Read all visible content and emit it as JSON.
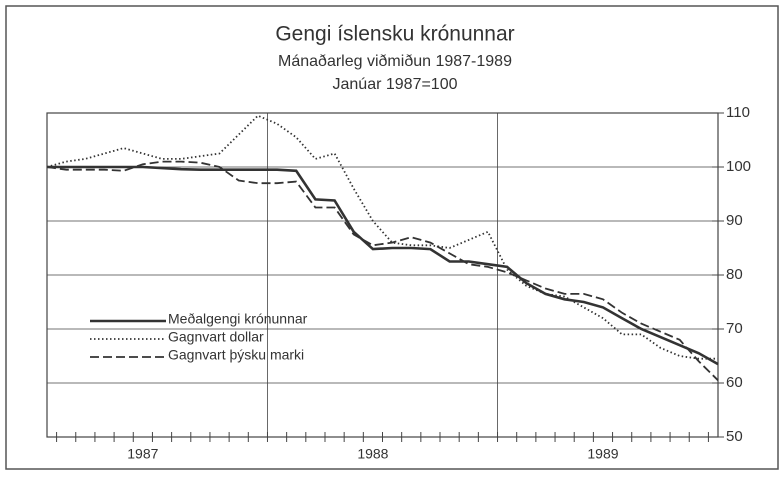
{
  "chart_data": {
    "type": "line",
    "title": "Gengi íslensku krónunnar",
    "subtitle": "Mánaðarleg viðmiðun 1987-1989",
    "note": "Janúar 1987=100",
    "categories": [
      null,
      null,
      null,
      null,
      null,
      "1987",
      null,
      null,
      null,
      null,
      null,
      null,
      null,
      null,
      null,
      null,
      null,
      "1988",
      null,
      null,
      null,
      null,
      null,
      null,
      null,
      null,
      null,
      null,
      null,
      "1989",
      null,
      null,
      null,
      null,
      null,
      null
    ],
    "series": [
      {
        "name": "Meðalgengi krónunnar",
        "color": "#333333",
        "dash": "solid",
        "values": [
          100,
          100,
          100,
          100,
          100,
          100,
          99.8,
          99.6,
          99.5,
          99.5,
          99.5,
          99.5,
          99.5,
          99.3,
          94,
          93.8,
          88,
          84.8,
          85,
          85,
          84.8,
          82.5,
          82.5,
          82,
          81.5,
          78.5,
          76.5,
          75.5,
          75,
          74,
          72,
          70,
          68.5,
          67,
          65.5,
          63.5
        ]
      },
      {
        "name": "Gagnvart dollar",
        "color": "#333333",
        "dash": "dotted",
        "values": [
          100,
          101,
          101.5,
          102.5,
          103.5,
          102.5,
          101.5,
          101.5,
          102,
          102.5,
          106,
          109.5,
          108,
          105.5,
          101.5,
          102.5,
          96,
          90,
          86,
          85.5,
          85.5,
          85,
          86.5,
          88,
          81,
          78,
          76.5,
          76,
          74,
          72,
          69,
          69,
          66.5,
          65,
          64.5,
          64.5
        ]
      },
      {
        "name": "Gagnvart þýsku marki",
        "color": "#333333",
        "dash": "dashed",
        "values": [
          100,
          99.5,
          99.5,
          99.5,
          99.3,
          100.5,
          101,
          101,
          100.8,
          100,
          97.5,
          97,
          97,
          97.3,
          92.5,
          92.5,
          87.5,
          85.5,
          86,
          87,
          86,
          84,
          82,
          81.5,
          80.5,
          79,
          77.5,
          76.5,
          76.5,
          75.5,
          73,
          71,
          69.5,
          68,
          64,
          60.5
        ]
      }
    ],
    "ylim": [
      50,
      110
    ],
    "yticks": [
      50,
      60,
      70,
      80,
      90,
      100,
      110
    ],
    "grid": true,
    "legend": "left"
  }
}
